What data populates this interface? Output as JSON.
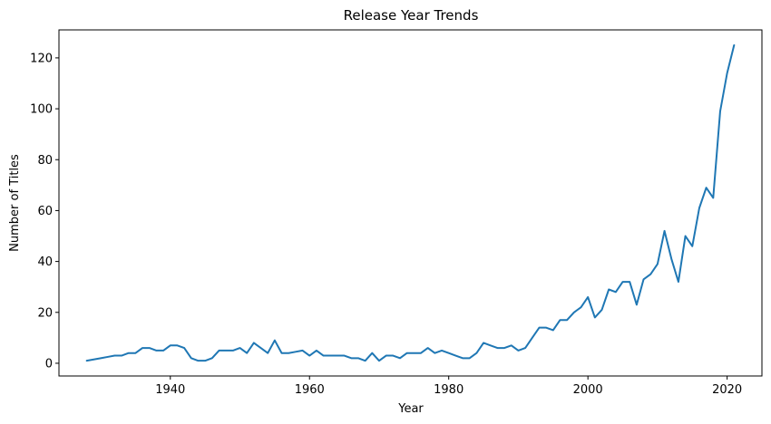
{
  "chart_data": {
    "type": "line",
    "title": "Release Year Trends",
    "xlabel": "Year",
    "ylabel": "Number of Titles",
    "xlim": [
      1924,
      2025
    ],
    "ylim": [
      -5,
      131
    ],
    "x_ticks": [
      1940,
      1960,
      1980,
      2000,
      2020
    ],
    "y_ticks": [
      0,
      20,
      40,
      60,
      80,
      100,
      120
    ],
    "grid": false,
    "line_color": "#1f77b4",
    "series": [
      {
        "x": [
          1928,
          1929,
          1930,
          1931,
          1932,
          1933,
          1934,
          1935,
          1936,
          1937,
          1938,
          1939,
          1940,
          1941,
          1942,
          1943,
          1944,
          1945,
          1946,
          1947,
          1948,
          1949,
          1950,
          1951,
          1952,
          1953,
          1954,
          1955,
          1956,
          1957,
          1958,
          1959,
          1960,
          1961,
          1962,
          1963,
          1964,
          1965,
          1966,
          1967,
          1968,
          1969,
          1970,
          1971,
          1972,
          1973,
          1974,
          1975,
          1976,
          1977,
          1978,
          1979,
          1980,
          1981,
          1982,
          1983,
          1984,
          1985,
          1986,
          1987,
          1988,
          1989,
          1990,
          1991,
          1992,
          1993,
          1994,
          1995,
          1996,
          1997,
          1998,
          1999,
          2000,
          2001,
          2002,
          2003,
          2004,
          2005,
          2006,
          2007,
          2008,
          2009,
          2010,
          2011,
          2012,
          2013,
          2014,
          2015,
          2016,
          2017,
          2018,
          2019,
          2020,
          2021
        ],
        "values": [
          1,
          1.5,
          2,
          2.5,
          3,
          3,
          4,
          4,
          6,
          6,
          5,
          5,
          7,
          7,
          6,
          2,
          1,
          1,
          2,
          5,
          5,
          5,
          6,
          4,
          8,
          6,
          4,
          9,
          4,
          4,
          4.5,
          5,
          3,
          5,
          3,
          3,
          3,
          3,
          2,
          2,
          1,
          4,
          1,
          3,
          3,
          2,
          4,
          4,
          4,
          6,
          4,
          5,
          4,
          3,
          2,
          2,
          4,
          8,
          7,
          6,
          6,
          7,
          5,
          6,
          10,
          14,
          14,
          13,
          17,
          17,
          20,
          22,
          26,
          18,
          21,
          29,
          28,
          32,
          32,
          23,
          33,
          35,
          39,
          52,
          41,
          32,
          50,
          46,
          61,
          69,
          65,
          99,
          114,
          125
        ]
      }
    ]
  }
}
